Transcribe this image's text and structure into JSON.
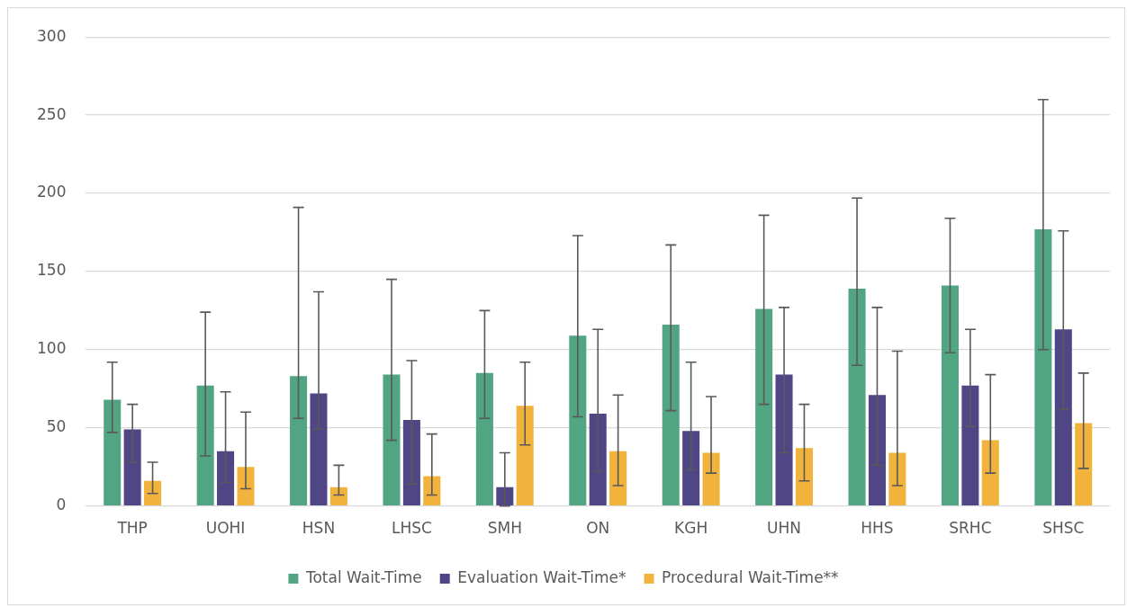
{
  "chart_data": {
    "type": "bar",
    "categories": [
      "THP",
      "UOHI",
      "HSN",
      "LHSC",
      "SMH",
      "ON",
      "KGH",
      "UHN",
      "HHS",
      "SRHC",
      "SHSC"
    ],
    "series": [
      {
        "name": "Total Wait-Time",
        "color": "#52a582",
        "values": [
          68,
          77,
          83,
          84,
          85,
          109,
          116,
          126,
          139,
          141,
          177
        ],
        "errors": [
          [
            47,
            92
          ],
          [
            32,
            124
          ],
          [
            56,
            191
          ],
          [
            42,
            145
          ],
          [
            56,
            125
          ],
          [
            57,
            173
          ],
          [
            61,
            167
          ],
          [
            65,
            186
          ],
          [
            90,
            197
          ],
          [
            98,
            184
          ],
          [
            100,
            260
          ]
        ]
      },
      {
        "name": "Evaluation Wait-Time*",
        "color": "#514685",
        "values": [
          49,
          35,
          72,
          55,
          12,
          59,
          48,
          84,
          71,
          77,
          113
        ],
        "errors": [
          [
            28,
            65
          ],
          [
            15,
            73
          ],
          [
            49,
            137
          ],
          [
            14,
            93
          ],
          [
            0,
            34
          ],
          [
            22,
            113
          ],
          [
            23,
            92
          ],
          [
            34,
            127
          ],
          [
            26,
            127
          ],
          [
            51,
            113
          ],
          [
            62,
            176
          ]
        ]
      },
      {
        "name": "Procedural Wait-Time**",
        "color": "#f1b33c",
        "values": [
          16,
          25,
          12,
          19,
          64,
          35,
          34,
          37,
          34,
          42,
          53
        ],
        "errors": [
          [
            8,
            28
          ],
          [
            11,
            60
          ],
          [
            7,
            26
          ],
          [
            7,
            46
          ],
          [
            39,
            92
          ],
          [
            13,
            71
          ],
          [
            21,
            70
          ],
          [
            16,
            65
          ],
          [
            13,
            99
          ],
          [
            21,
            84
          ],
          [
            24,
            85
          ]
        ]
      }
    ],
    "ylim": [
      0,
      300
    ],
    "yticks": [
      0,
      50,
      100,
      150,
      200,
      250,
      300
    ],
    "grid": "y",
    "legend": "bottom"
  }
}
